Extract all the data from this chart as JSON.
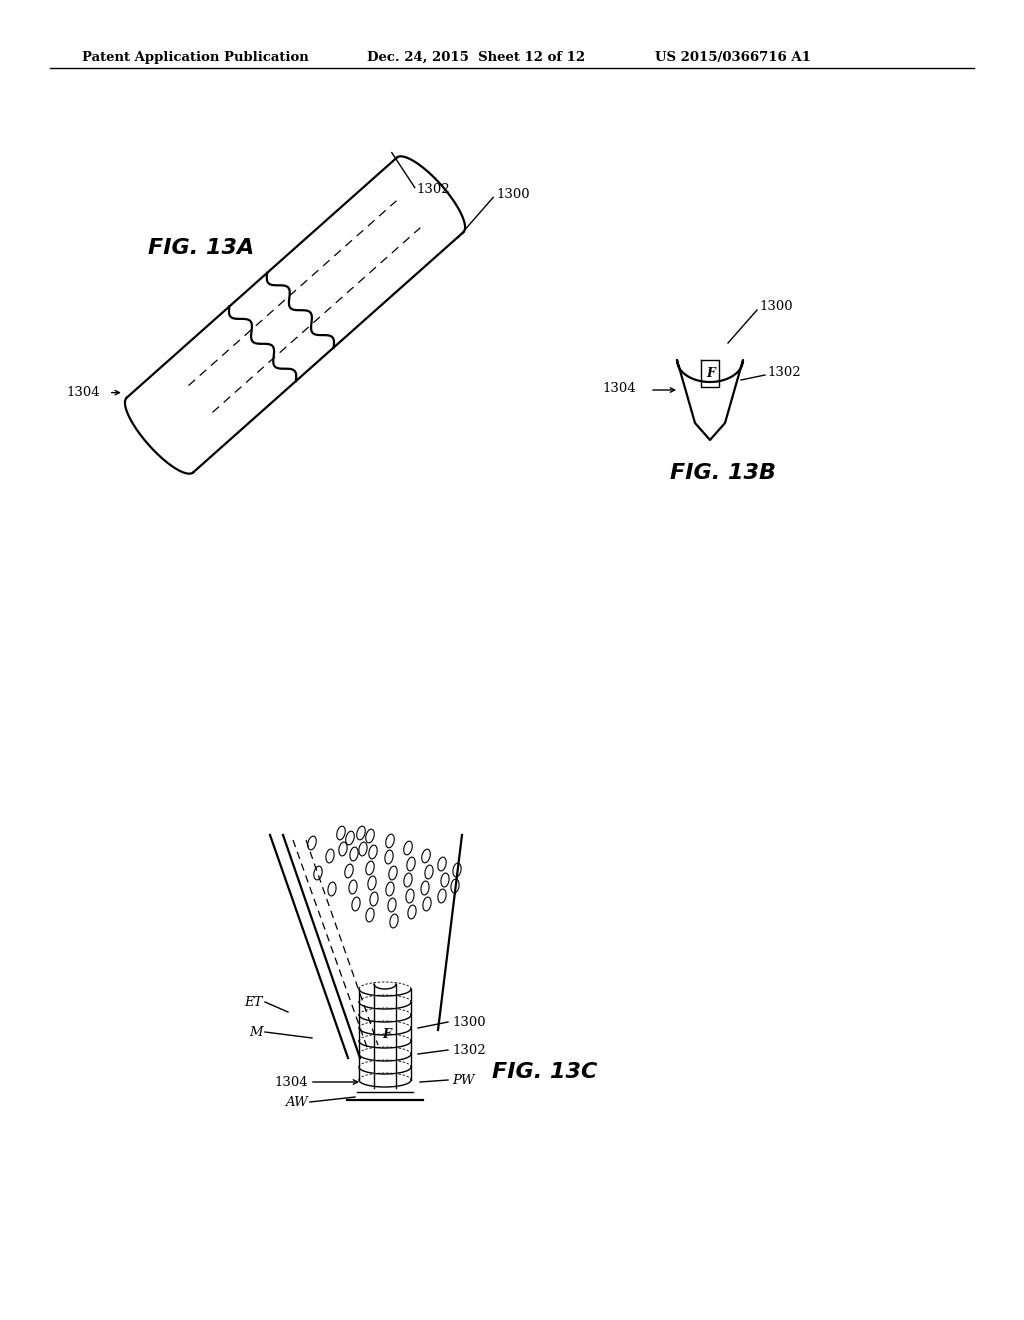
{
  "bg_color": "#ffffff",
  "header_left": "Patent Application Publication",
  "header_mid": "Dec. 24, 2015  Sheet 12 of 12",
  "header_right": "US 2015/0366716 A1",
  "fig13a_label": "FIG. 13A",
  "fig13b_label": "FIG. 13B",
  "fig13c_label": "FIG. 13C",
  "line_color": "#000000",
  "lw_main": 1.6,
  "lw_thin": 1.0,
  "lw_dash": 0.9
}
